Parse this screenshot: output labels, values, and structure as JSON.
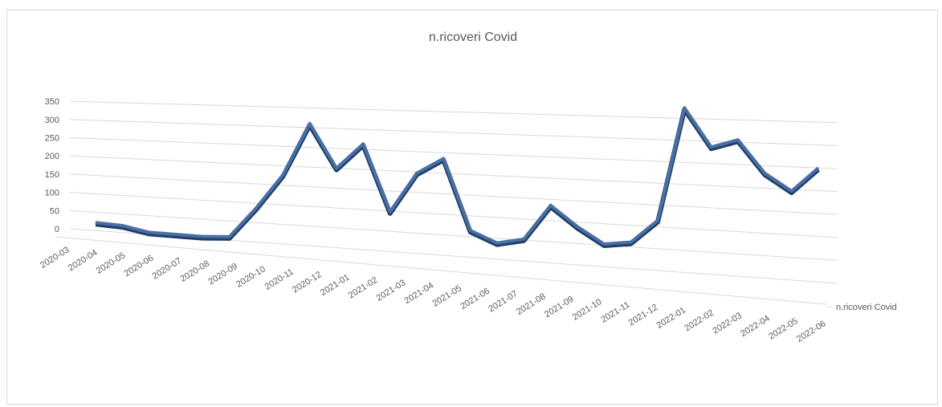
{
  "chart_data": {
    "type": "line",
    "title": "n.ricoveri Covid",
    "xlabel": "",
    "ylabel": "",
    "ylim": [
      0,
      350
    ],
    "yticks": [
      0,
      50,
      100,
      150,
      200,
      250,
      300,
      350
    ],
    "categories": [
      "2020-03",
      "2020-04",
      "2020-05",
      "2020-06",
      "2020-07",
      "2020-08",
      "2020-09",
      "2020-10",
      "2020-11",
      "2020-12",
      "2021-01",
      "2021-02",
      "2021-03",
      "2021-04",
      "2021-05",
      "2021-06",
      "2021-07",
      "2021-08",
      "2021-09",
      "2021-10",
      "2021-11",
      "2021-12",
      "2022-01",
      "2022-02",
      "2022-03",
      "2022-04",
      "2022-05",
      "2022-06"
    ],
    "series": [
      {
        "name": "n.ricoveri Covid",
        "values": [
          26,
          18,
          0,
          -5,
          -10,
          -10,
          65,
          150,
          280,
          165,
          225,
          55,
          150,
          185,
          10,
          -20,
          -10,
          70,
          20,
          -20,
          -15,
          35,
          290,
          200,
          215,
          140,
          100,
          150
        ]
      }
    ],
    "grid": true,
    "style": "3d-line",
    "series_color": "#4a6fa5"
  }
}
